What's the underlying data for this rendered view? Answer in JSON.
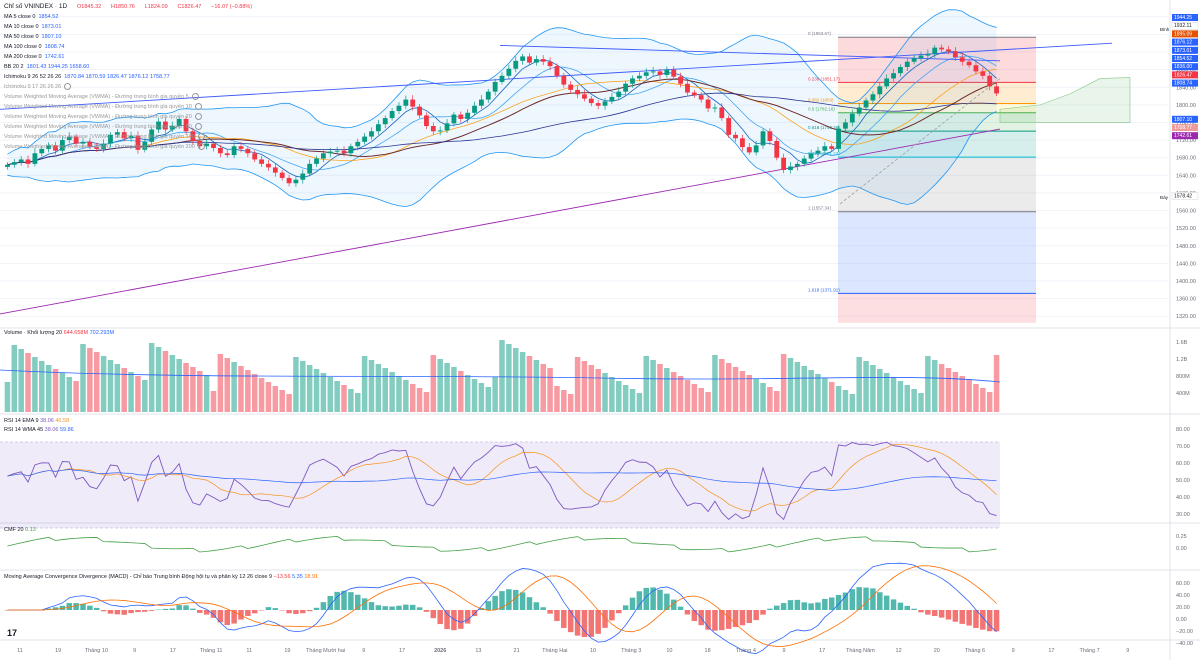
{
  "title": "Chỉ số VNINDEX · 1D",
  "ohlc": {
    "o": "O1845.32",
    "h": "H1850.76",
    "l": "L1824.09",
    "c": "C1826.47",
    "chg": "−16.07 (−0.88%)"
  },
  "legends": [
    {
      "label": "MA 5 close 0",
      "value": "1854.52",
      "color": "#2962ff"
    },
    {
      "label": "MA 10 close 0",
      "value": "1873.01",
      "color": "#2962ff"
    },
    {
      "label": "MA 50 close 0",
      "value": "1807.10",
      "color": "#2962ff"
    },
    {
      "label": "MA 100 close 0",
      "value": "1808.74",
      "color": "#2962ff"
    },
    {
      "label": "MA 200 close 0",
      "value": "1742.61",
      "color": "#2962ff"
    },
    {
      "label": "BB 20 2",
      "value": "1801.43  1944.25  1658.60",
      "color": "#2962ff"
    },
    {
      "label": "Ichimoku 9 26 52 26 26",
      "value": "1870.84  1870.59  1826.47  1876.12  1758.77",
      "color": "#2962ff"
    },
    {
      "label": "Ichimoku 9 17 26 26 26",
      "value": "",
      "color": "#999999"
    },
    {
      "label": "Volume Weighted Moving Average (VWMA) - Đường trung bình gia quyền 5",
      "value": "",
      "color": "#999999"
    },
    {
      "label": "Volume Weighted Moving Average (VWMA) - Đường trung bình gia quyền 10",
      "value": "",
      "color": "#999999"
    },
    {
      "label": "Volume Weighted Moving Average (VWMA) - Đường trung bình gia quyền 20",
      "value": "",
      "color": "#999999"
    },
    {
      "label": "Volume Weighted Moving Average (VWMA) - Đường trung bình gia quyền 50",
      "value": "",
      "color": "#999999"
    },
    {
      "label": "Volume Weighted Moving Average (VWMA) - Đường trung bình gia quyền 100",
      "value": "",
      "color": "#999999"
    },
    {
      "label": "Volume Weighted Moving Average (VWMA) - Đường trung bình gia quyền 200",
      "value": "",
      "color": "#999999"
    }
  ],
  "panes": {
    "volume": {
      "label": "Volume · Khối lượng 20",
      "v1": "644.658M",
      "v2": "702.293M",
      "ticks": [
        "1.6B",
        "1.2B",
        "800M",
        "400M"
      ]
    },
    "rsi": {
      "label1": "RSI 14 EMA 9",
      "v1a": "38.06",
      "v1b": "46.58",
      "label2": "RSI 14 WMA 45",
      "v2a": "38.06",
      "v2b": "59.86",
      "ticks": [
        "80.00",
        "70.00",
        "60.00",
        "50.00",
        "40.00",
        "30.00"
      ]
    },
    "cmf": {
      "label": "CMF 20",
      "value": "0.13",
      "ticks": [
        "0.25",
        "0.00"
      ]
    },
    "macd": {
      "label": "Moving Average Convergence Divergence (MACD) - Chỉ báo Trung bình Động hội tụ và phân kỳ 12 26 close 9",
      "v1": "−13.56",
      "v2": "5.35",
      "v3": "18.91",
      "ticks": [
        "60.00",
        "40.00",
        "20.00",
        "0.00",
        "−20.00",
        "−40.00"
      ]
    }
  },
  "price_ticks": [
    "2000.00",
    "1960.00",
    "1920.00",
    "1880.00",
    "1840.00",
    "1800.00",
    "1760.00",
    "1720.00",
    "1680.00",
    "1640.00",
    "1600.00",
    "1560.00",
    "1520.00",
    "1480.00",
    "1440.00",
    "1400.00",
    "1360.00",
    "1320.00"
  ],
  "price_badges": [
    {
      "text": "1944.25",
      "color": "#2962ff"
    },
    {
      "text": "1932.11",
      "color": "#ffffff",
      "fg": "#131722"
    },
    {
      "text": "1895.09",
      "color": "#e65100"
    },
    {
      "text": "1876.12",
      "color": "#2962ff"
    },
    {
      "text": "1873.01",
      "color": "#2962ff"
    },
    {
      "text": "1854.52",
      "color": "#2962ff"
    },
    {
      "text": "1836.00",
      "color": "#2962ff"
    },
    {
      "text": "1826.47",
      "color": "#f23645"
    },
    {
      "text": "1808.74",
      "color": "#2962ff"
    },
    {
      "text": "1807.10",
      "color": "#2962ff"
    },
    {
      "text": "1758.77",
      "color": "#ef9a9a"
    },
    {
      "text": "1742.61",
      "color": "#9c27b0"
    },
    {
      "text": "1578.42",
      "color": "#ffffff",
      "fg": "#131722"
    }
  ],
  "side_labels": {
    "top": "Đỉnh",
    "bottom": "Đáy"
  },
  "fib": [
    {
      "label": "0 (1953.67)",
      "value": 1953.67
    },
    {
      "label": "0.236 (1851.17)",
      "value": 1851.17
    },
    {
      "label": "0.382 (1803)",
      "value": 1803
    },
    {
      "label": "0.5 (1782.18)",
      "value": 1782.18
    },
    {
      "label": "0.618 (1740.26)",
      "value": 1740.26
    },
    {
      "label": "0.786 (1681.24)",
      "value": 1681.24
    },
    {
      "label": "1 (1557.34)",
      "value": 1557.34
    },
    {
      "label": "1.618 (1371.91)",
      "value": 1371.91
    }
  ],
  "x_labels": [
    "11",
    "19",
    "Tháng 10",
    "9",
    "17",
    "Tháng 11",
    "11",
    "19",
    "Tháng Mười hai",
    "9",
    "17",
    "2026",
    "13",
    "21",
    "Tháng Hai",
    "10",
    "Tháng 3",
    "10",
    "18",
    "Tháng 4",
    "9",
    "17",
    "Tháng Năm",
    "12",
    "20",
    "Tháng 6",
    "9",
    "17",
    "Tháng 7",
    "9"
  ],
  "chart_data": {
    "type": "candlestick",
    "title": "Chỉ số VNINDEX · 1D",
    "price_range": [
      1300,
      2020
    ],
    "closes": [
      1664,
      1670,
      1676,
      1666,
      1690,
      1700,
      1708,
      1696,
      1720,
      1728,
      1712,
      1716,
      1705,
      1700,
      1712,
      1732,
      1738,
      1724,
      1730,
      1698,
      1716,
      1744,
      1762,
      1744,
      1752,
      1768,
      1740,
      1718,
      1706,
      1712,
      1702,
      1690,
      1686,
      1706,
      1700,
      1690,
      1676,
      1666,
      1658,
      1646,
      1634,
      1622,
      1630,
      1644,
      1666,
      1678,
      1690,
      1694,
      1696,
      1690,
      1706,
      1716,
      1728,
      1740,
      1756,
      1770,
      1786,
      1798,
      1812,
      1796,
      1776,
      1752,
      1740,
      1742,
      1758,
      1778,
      1768,
      1782,
      1798,
      1812,
      1830,
      1852,
      1866,
      1882,
      1900,
      1910,
      1896,
      1904,
      1898,
      1888,
      1866,
      1846,
      1834,
      1824,
      1814,
      1804,
      1798,
      1808,
      1818,
      1830,
      1848,
      1860,
      1866,
      1874,
      1876,
      1868,
      1880,
      1864,
      1848,
      1828,
      1822,
      1812,
      1792,
      1794,
      1770,
      1732,
      1724,
      1704,
      1692,
      1708,
      1740,
      1718,
      1680,
      1652,
      1660,
      1666,
      1678,
      1690,
      1696,
      1706,
      1700,
      1746,
      1760,
      1780,
      1794,
      1810,
      1824,
      1842,
      1860,
      1872,
      1886,
      1898,
      1906,
      1912,
      1916,
      1930,
      1926,
      1922,
      1908,
      1898,
      1890,
      1876,
      1866,
      1842,
      1826
    ]
  }
}
